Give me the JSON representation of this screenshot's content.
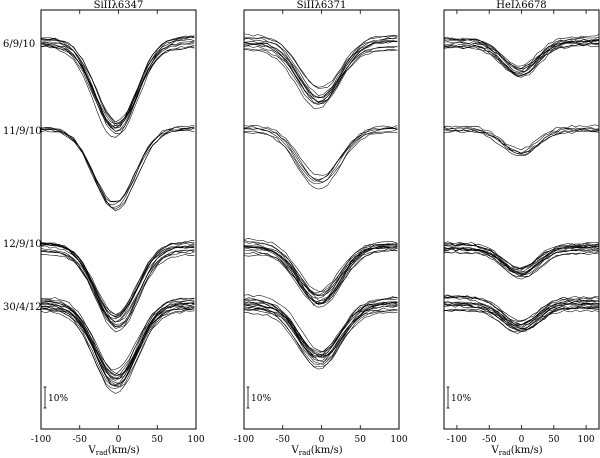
{
  "chart_data": {
    "type": "line",
    "description_of_y": "normalized flux, profiles vertically offset by observing night; scale bar = 10%",
    "scale_bar_label": "10%",
    "xlabel_main": "V",
    "xlabel_sub": "rad",
    "xlabel_unit": "(km/s)",
    "xlim": [
      -100,
      100
    ],
    "xticks": [
      "-100",
      "-50",
      "0",
      "50",
      "100"
    ],
    "date_labels": [
      "6/9/10",
      "11/9/10",
      "12/9/10",
      "30/4/12"
    ],
    "panels": [
      {
        "title": "SiIIλ6347",
        "xlim": [
          -100,
          100
        ],
        "groups": [
          {
            "date": "6/9/10",
            "n_profiles": 12,
            "continuum": 1.0,
            "center_kms": -3,
            "depth_pct": 28,
            "spread_pct": 3.5
          },
          {
            "date": "11/9/10",
            "n_profiles": 6,
            "continuum": 1.0,
            "center_kms": -4,
            "depth_pct": 25,
            "spread_pct": 1.5
          },
          {
            "date": "12/9/10",
            "n_profiles": 14,
            "continuum": 1.0,
            "center_kms": -3,
            "depth_pct": 25,
            "spread_pct": 3.5
          },
          {
            "date": "30/4/12",
            "n_profiles": 16,
            "continuum": 1.0,
            "center_kms": -3,
            "depth_pct": 25,
            "spread_pct": 4.0
          }
        ]
      },
      {
        "title": "SiIIλ6371",
        "xlim": [
          -100,
          100
        ],
        "groups": [
          {
            "date": "6/9/10",
            "n_profiles": 12,
            "continuum": 1.0,
            "center_kms": -3,
            "depth_pct": 19,
            "spread_pct": 3.5
          },
          {
            "date": "11/9/10",
            "n_profiles": 6,
            "continuum": 1.0,
            "center_kms": -3,
            "depth_pct": 18,
            "spread_pct": 1.5
          },
          {
            "date": "12/9/10",
            "n_profiles": 14,
            "continuum": 1.0,
            "center_kms": -3,
            "depth_pct": 18,
            "spread_pct": 3.5
          },
          {
            "date": "30/4/12",
            "n_profiles": 16,
            "continuum": 1.0,
            "center_kms": -2,
            "depth_pct": 18,
            "spread_pct": 4.0
          }
        ]
      },
      {
        "title": "HeIλ6678",
        "xlim": [
          -120,
          120
        ],
        "groups": [
          {
            "date": "6/9/10",
            "n_profiles": 12,
            "continuum": 1.0,
            "center_kms": -2,
            "depth_pct": 10,
            "spread_pct": 3.5
          },
          {
            "date": "11/9/10",
            "n_profiles": 6,
            "continuum": 1.0,
            "center_kms": -3,
            "depth_pct": 8,
            "spread_pct": 1.5
          },
          {
            "date": "12/9/10",
            "n_profiles": 14,
            "continuum": 1.0,
            "center_kms": -2,
            "depth_pct": 8,
            "spread_pct": 3.5
          },
          {
            "date": "30/4/12",
            "n_profiles": 16,
            "continuum": 1.0,
            "center_kms": -2,
            "depth_pct": 8,
            "spread_pct": 4.0
          }
        ]
      }
    ]
  }
}
